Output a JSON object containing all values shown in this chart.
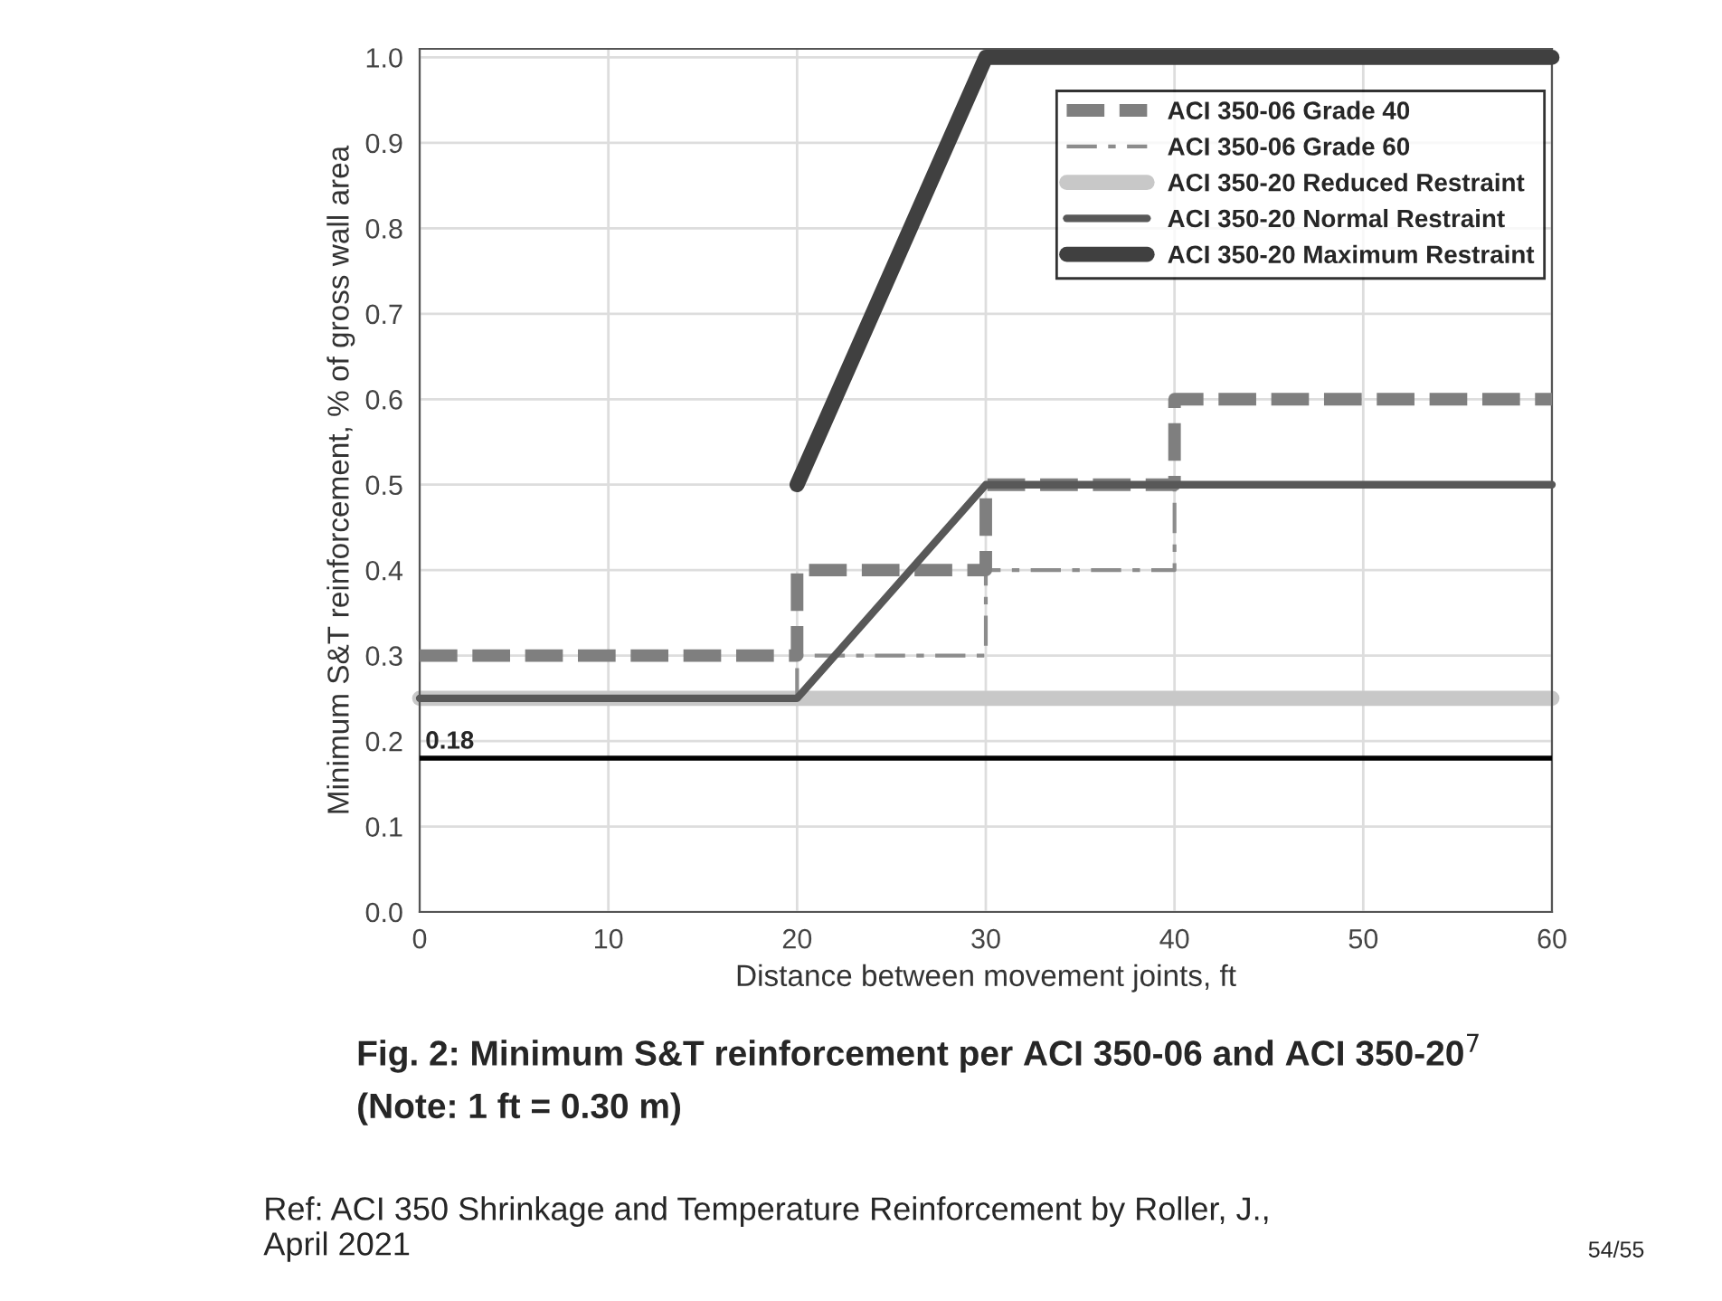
{
  "chart_data": {
    "type": "line",
    "xlabel": "Distance between movement joints, ft",
    "ylabel": "Minimum S&T reinforcement, % of gross wall area",
    "xlim": [
      0,
      60
    ],
    "xticks": [
      0,
      10,
      20,
      30,
      40,
      50,
      60
    ],
    "ylim": [
      0,
      1.01
    ],
    "yticks": [
      {
        "value": 0,
        "label": "0.0"
      },
      0.1,
      0.2,
      0.3,
      0.4,
      0.5,
      0.6,
      0.7,
      0.8,
      0.9,
      {
        "value": 1.0,
        "label": "1.0"
      }
    ],
    "grid": true,
    "legend": "top right",
    "series": [
      {
        "name": "ACI 350-06 Grade 40",
        "color": "#7f7f7f",
        "line_style": "dashed",
        "x": [
          0,
          20,
          20,
          30,
          30,
          40,
          40,
          60
        ],
        "values": [
          0.3,
          0.3,
          0.4,
          0.4,
          0.5,
          0.5,
          0.6,
          0.6
        ]
      },
      {
        "name": "ACI 350-06 Grade 60",
        "color": "#8c8c8c",
        "line_style": "dashdot",
        "x": [
          20,
          20,
          30,
          30,
          40,
          40
        ],
        "values": [
          0.25,
          0.3,
          0.3,
          0.4,
          0.4,
          0.5
        ]
      },
      {
        "name": "ACI 350-20 Reduced Restraint",
        "color": "#c8c8c8",
        "line_style": "solid",
        "x": [
          0,
          60
        ],
        "values": [
          0.25,
          0.25
        ]
      },
      {
        "name": "ACI 350-20 Normal Restraint",
        "color": "#585858",
        "line_style": "solid",
        "x": [
          0,
          20,
          30,
          60
        ],
        "values": [
          0.25,
          0.25,
          0.5,
          0.5
        ]
      },
      {
        "name": "ACI 350-20 Maximum Restraint",
        "color": "#404040",
        "line_style": "solid",
        "x": [
          20,
          30,
          60
        ],
        "values": [
          0.5,
          1.0,
          1.0
        ]
      }
    ],
    "ref_lines": [
      {
        "axis": "y",
        "value": 0.18,
        "label": "0.18",
        "color": "#000000",
        "line_style": "solid"
      }
    ],
    "annotations": [
      "Fig. 2: Minimum S&T reinforcement per ACI 350-06 and ACI 350-20$^{7}$",
      "(Note: 1 ft = 0.30 m)",
      "Ref: ACI 350 Shrinkage and Temperature Reinforcement by Roller, J.,\nApril 2021",
      "54/55"
    ]
  }
}
